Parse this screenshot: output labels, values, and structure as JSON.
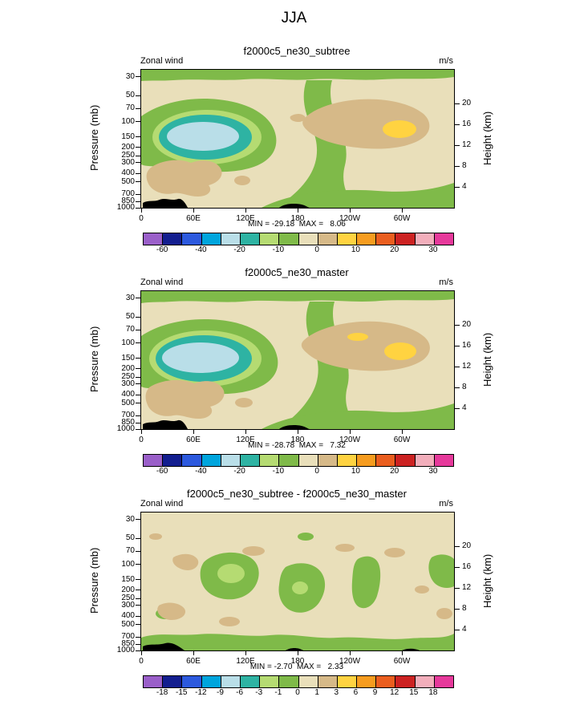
{
  "page_title": "JJA",
  "palette": {
    "colors16": [
      "#9A5FC9",
      "#131E8F",
      "#2C59DE",
      "#00A5DD",
      "#B9DEE8",
      "#2EB3A3",
      "#B5DB72",
      "#7FBA49",
      "#E9DFBA",
      "#D6B988",
      "#FFD341",
      "#F69C1F",
      "#EA5E1F",
      "#CC2222",
      "#F2AEBB",
      "#E6399B"
    ],
    "terrain": "#000000",
    "frame": "#000000",
    "background": "#FFFFFF"
  },
  "axes": {
    "ylabel_left": "Pressure (mb)",
    "ylabel_right": "Height (km)",
    "pressure_ticks": [
      30,
      50,
      70,
      100,
      150,
      200,
      250,
      300,
      400,
      500,
      700,
      850,
      1000
    ],
    "height_ticks": [
      20,
      16,
      12,
      8,
      4
    ],
    "lon_ticks": [
      "0",
      "60E",
      "120E",
      "180",
      "120W",
      "60W"
    ]
  },
  "panels": [
    {
      "title": "f2000c5_ne30_subtree",
      "field_label": "Zonal wind",
      "units": "m/s",
      "stats": "MIN = -29.18  MAX =   8.06",
      "colorbar": {
        "labels": [
          "-60",
          "-40",
          "-20",
          "-10",
          "0",
          "10",
          "20",
          "30"
        ],
        "boundaries": [
          1,
          3,
          5,
          7,
          9,
          11,
          13,
          15
        ]
      }
    },
    {
      "title": "f2000c5_ne30_master",
      "field_label": "Zonal wind",
      "units": "m/s",
      "stats": "MIN = -28.78  MAX =   7.32",
      "colorbar": {
        "labels": [
          "-60",
          "-40",
          "-20",
          "-10",
          "0",
          "10",
          "20",
          "30"
        ],
        "boundaries": [
          1,
          3,
          5,
          7,
          9,
          11,
          13,
          15
        ]
      }
    },
    {
      "title": "f2000c5_ne30_subtree - f2000c5_ne30_master",
      "field_label": "Zonal wind",
      "units": "m/s",
      "stats": "MIN = -2.70  MAX =   2.33",
      "colorbar": {
        "labels": [
          "-18",
          "-15",
          "-12",
          "-9",
          "-6",
          "-3",
          "-1",
          "0",
          "1",
          "3",
          "6",
          "9",
          "12",
          "15",
          "18"
        ],
        "boundaries": [
          1,
          2,
          3,
          4,
          5,
          6,
          7,
          8,
          9,
          10,
          11,
          12,
          13,
          14,
          15
        ]
      }
    }
  ],
  "chart_data": [
    {
      "type": "filled-contour",
      "panel": "top",
      "season": "JJA",
      "title": "f2000c5_ne30_subtree",
      "variable": "Zonal wind",
      "units": "m/s",
      "min": -29.18,
      "max": 8.06,
      "x_axis": {
        "ticks": [
          "0",
          "60E",
          "120E",
          "180",
          "120W",
          "60W"
        ],
        "range_deg": [
          0,
          360
        ]
      },
      "y_axis_left": {
        "label": "Pressure (mb)",
        "scale": "log",
        "ticks": [
          30,
          50,
          70,
          100,
          150,
          200,
          250,
          300,
          400,
          500,
          700,
          850,
          1000
        ]
      },
      "y_axis_right": {
        "label": "Height (km)",
        "ticks": [
          20,
          16,
          12,
          8,
          4
        ]
      },
      "colorbar_labels": [
        -60,
        -40,
        -20,
        -10,
        0,
        10,
        20,
        30
      ],
      "features": [
        "pale-blue minimum core (about -30 to -20 m/s) near 30-90E at 100-250 mb, ringed by teal then green",
        "green band (about -10 to -5 m/s) across the top near 30-50 mb and descending near 120E-180 to the surface",
        "tan weakly-positive region near 180-60W at 100-300 mb with a yellow maximum near 60W around 150 mb",
        "tan near-surface patch over 0-60E around 500-850 mb",
        "black terrain silhouette along the bottom near 0-30E and near 180"
      ]
    },
    {
      "type": "filled-contour",
      "panel": "middle",
      "season": "JJA",
      "title": "f2000c5_ne30_master",
      "variable": "Zonal wind",
      "units": "m/s",
      "min": -28.78,
      "max": 7.32,
      "x_axis": {
        "ticks": [
          "0",
          "60E",
          "120E",
          "180",
          "120W",
          "60W"
        ],
        "range_deg": [
          0,
          360
        ]
      },
      "y_axis_left": {
        "label": "Pressure (mb)",
        "scale": "log",
        "ticks": [
          30,
          50,
          70,
          100,
          150,
          200,
          250,
          300,
          400,
          500,
          700,
          850,
          1000
        ]
      },
      "y_axis_right": {
        "label": "Height (km)",
        "ticks": [
          20,
          16,
          12,
          8,
          4
        ]
      },
      "colorbar_labels": [
        -60,
        -40,
        -20,
        -10,
        0,
        10,
        20,
        30
      ],
      "features": [
        "pale-blue minimum core slightly larger than subtree run, near 30-90E at 100-250 mb",
        "green band across the top and descending near 120E-180 to the surface",
        "tan region near 180-60W at 100-300 mb with yellow maximum near 60W and a small yellow sliver near 120W",
        "tan near-surface patch over 0-60E around 500-850 mb",
        "black terrain silhouette along the bottom near 0-30E and near 180"
      ]
    },
    {
      "type": "filled-contour",
      "panel": "bottom",
      "season": "JJA",
      "title": "f2000c5_ne30_subtree - f2000c5_ne30_master",
      "variable": "Zonal wind",
      "units": "m/s",
      "min": -2.7,
      "max": 2.33,
      "x_axis": {
        "ticks": [
          "0",
          "60E",
          "120E",
          "180",
          "120W",
          "60W"
        ],
        "range_deg": [
          0,
          360
        ]
      },
      "y_axis_left": {
        "label": "Pressure (mb)",
        "scale": "log",
        "ticks": [
          30,
          50,
          70,
          100,
          150,
          200,
          250,
          300,
          400,
          500,
          700,
          850,
          1000
        ]
      },
      "y_axis_right": {
        "label": "Height (km)",
        "ticks": [
          20,
          16,
          12,
          8,
          4
        ]
      },
      "colorbar_labels": [
        -18,
        -15,
        -12,
        -9,
        -6,
        -3,
        -1,
        0,
        1,
        3,
        6,
        9,
        12,
        15,
        18
      ],
      "features": [
        "mostly beige background (differences between 0 and 1 m/s)",
        "scattered green patches (-1 to 0) with light-green cores (-3 to -1) near 60-120E, 150E-180 and 120W at 100-300 mb",
        "green band along the surface across most longitudes",
        "small tan patches (1 to 3) scattered near 70-100 mb and near the surface",
        "black terrain silhouette at bottom left"
      ]
    }
  ]
}
